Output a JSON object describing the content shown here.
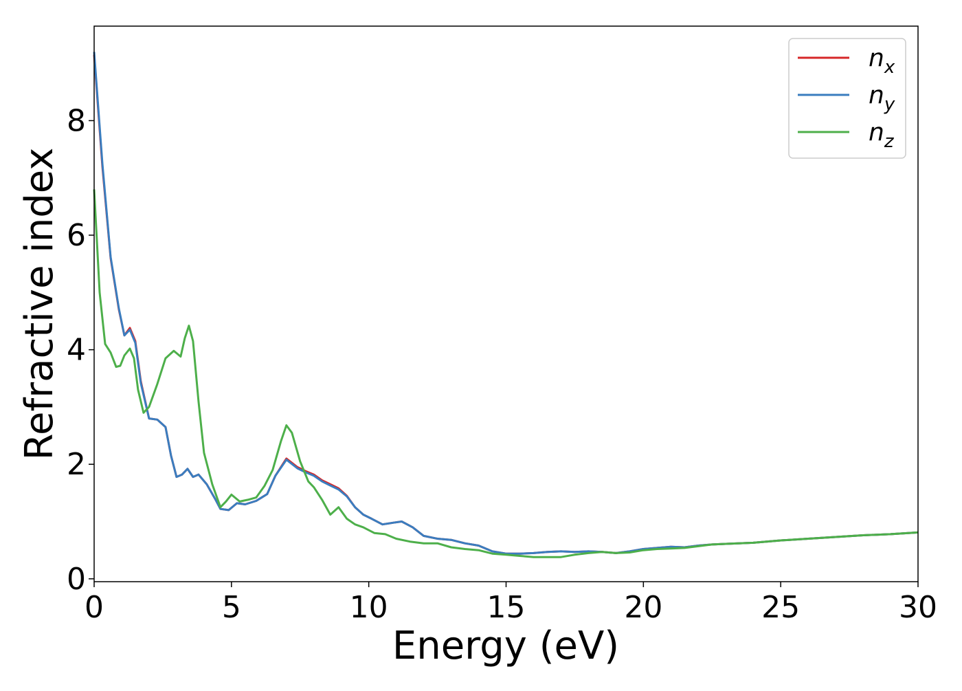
{
  "chart_data": {
    "type": "line",
    "title": "",
    "xlabel": "Energy (eV)",
    "ylabel": "Refractive index",
    "xlim": [
      0,
      30
    ],
    "ylim": [
      -0.05,
      9.65
    ],
    "xticks": [
      0,
      5,
      10,
      15,
      20,
      25,
      30
    ],
    "yticks": [
      0,
      2,
      4,
      6,
      8
    ],
    "grid": false,
    "legend": {
      "placement": "top-right",
      "entries": [
        {
          "base": "n",
          "sub": "x",
          "color": "#d62728"
        },
        {
          "base": "n",
          "sub": "y",
          "color": "#3a7dbf"
        },
        {
          "base": "n",
          "sub": "z",
          "color": "#4daf4a"
        }
      ]
    },
    "series": [
      {
        "name": "nx",
        "color": "#d62728",
        "x": [
          0,
          0.3,
          0.6,
          0.9,
          1.1,
          1.3,
          1.5,
          1.7,
          2.0,
          2.3,
          2.6,
          2.8,
          3.0,
          3.2,
          3.4,
          3.6,
          3.8,
          4.1,
          4.4,
          4.6,
          4.9,
          5.2,
          5.5,
          5.9,
          6.3,
          6.6,
          7.0,
          7.4,
          7.7,
          8.0,
          8.3,
          8.6,
          8.9,
          9.2,
          9.5,
          9.8,
          10.1,
          10.5,
          10.9,
          11.2,
          11.6,
          12.0,
          12.5,
          13.0,
          13.5,
          14.0,
          14.5,
          15.0,
          15.5,
          16.0,
          16.5,
          17.0,
          17.5,
          18.0,
          18.5,
          19.0,
          19.5,
          20.0,
          20.5,
          21.0,
          21.5,
          22.0,
          22.5,
          23.0,
          24.0,
          25.0,
          26.0,
          27.0,
          28.0,
          29.0,
          30.0
        ],
        "y": [
          9.15,
          7.2,
          5.6,
          4.7,
          4.25,
          4.38,
          4.15,
          3.45,
          2.8,
          2.78,
          2.65,
          2.15,
          1.78,
          1.82,
          1.92,
          1.78,
          1.82,
          1.65,
          1.4,
          1.22,
          1.2,
          1.32,
          1.3,
          1.36,
          1.48,
          1.8,
          2.1,
          1.95,
          1.88,
          1.82,
          1.72,
          1.65,
          1.58,
          1.45,
          1.25,
          1.12,
          1.05,
          0.95,
          0.98,
          1.0,
          0.9,
          0.75,
          0.7,
          0.68,
          0.62,
          0.58,
          0.48,
          0.44,
          0.44,
          0.45,
          0.47,
          0.48,
          0.47,
          0.48,
          0.47,
          0.45,
          0.48,
          0.52,
          0.54,
          0.56,
          0.55,
          0.58,
          0.6,
          0.61,
          0.63,
          0.67,
          0.7,
          0.73,
          0.76,
          0.78,
          0.81
        ]
      },
      {
        "name": "ny",
        "color": "#3a7dbf",
        "x": [
          0,
          0.3,
          0.6,
          0.9,
          1.1,
          1.3,
          1.5,
          1.7,
          2.0,
          2.3,
          2.6,
          2.8,
          3.0,
          3.2,
          3.4,
          3.6,
          3.8,
          4.1,
          4.4,
          4.6,
          4.9,
          5.2,
          5.5,
          5.9,
          6.3,
          6.6,
          7.0,
          7.4,
          7.7,
          8.0,
          8.3,
          8.6,
          8.9,
          9.2,
          9.5,
          9.8,
          10.1,
          10.5,
          10.9,
          11.2,
          11.6,
          12.0,
          12.5,
          13.0,
          13.5,
          14.0,
          14.5,
          15.0,
          15.5,
          16.0,
          16.5,
          17.0,
          17.5,
          18.0,
          18.5,
          19.0,
          19.5,
          20.0,
          20.5,
          21.0,
          21.5,
          22.0,
          22.5,
          23.0,
          24.0,
          25.0,
          26.0,
          27.0,
          28.0,
          29.0,
          30.0
        ],
        "y": [
          9.2,
          7.25,
          5.62,
          4.72,
          4.25,
          4.35,
          4.12,
          3.42,
          2.8,
          2.78,
          2.65,
          2.15,
          1.78,
          1.82,
          1.92,
          1.78,
          1.82,
          1.65,
          1.4,
          1.22,
          1.2,
          1.32,
          1.3,
          1.36,
          1.48,
          1.8,
          2.08,
          1.93,
          1.86,
          1.8,
          1.7,
          1.63,
          1.56,
          1.44,
          1.25,
          1.12,
          1.05,
          0.95,
          0.98,
          1.0,
          0.9,
          0.75,
          0.7,
          0.68,
          0.62,
          0.58,
          0.48,
          0.44,
          0.44,
          0.45,
          0.47,
          0.48,
          0.47,
          0.48,
          0.47,
          0.45,
          0.48,
          0.52,
          0.54,
          0.56,
          0.55,
          0.58,
          0.6,
          0.61,
          0.63,
          0.67,
          0.7,
          0.73,
          0.76,
          0.78,
          0.81
        ]
      },
      {
        "name": "nz",
        "color": "#4daf4a",
        "x": [
          0,
          0.2,
          0.4,
          0.6,
          0.8,
          0.95,
          1.1,
          1.3,
          1.45,
          1.6,
          1.8,
          2.0,
          2.3,
          2.6,
          2.9,
          3.15,
          3.3,
          3.45,
          3.6,
          3.8,
          4.0,
          4.3,
          4.6,
          4.8,
          5.0,
          5.3,
          5.6,
          5.9,
          6.2,
          6.5,
          6.8,
          7.0,
          7.2,
          7.5,
          7.8,
          8.0,
          8.3,
          8.6,
          8.9,
          9.2,
          9.5,
          9.8,
          10.2,
          10.6,
          11.0,
          11.5,
          12.0,
          12.5,
          13.0,
          13.5,
          14.0,
          14.5,
          15.0,
          15.5,
          16.0,
          16.5,
          17.0,
          17.5,
          18.0,
          18.5,
          19.0,
          19.5,
          20.0,
          20.5,
          21.0,
          21.5,
          22.0,
          22.5,
          23.0,
          24.0,
          25.0,
          26.0,
          27.0,
          28.0,
          29.0,
          30.0
        ],
        "y": [
          6.8,
          5.0,
          4.1,
          3.95,
          3.7,
          3.72,
          3.9,
          4.02,
          3.85,
          3.3,
          2.9,
          3.0,
          3.4,
          3.85,
          3.98,
          3.88,
          4.2,
          4.42,
          4.15,
          3.1,
          2.2,
          1.65,
          1.25,
          1.35,
          1.47,
          1.35,
          1.38,
          1.42,
          1.62,
          1.9,
          2.4,
          2.68,
          2.55,
          2.05,
          1.7,
          1.6,
          1.38,
          1.12,
          1.25,
          1.05,
          0.95,
          0.9,
          0.8,
          0.78,
          0.7,
          0.65,
          0.62,
          0.62,
          0.55,
          0.52,
          0.5,
          0.44,
          0.42,
          0.4,
          0.38,
          0.38,
          0.38,
          0.42,
          0.45,
          0.47,
          0.45,
          0.46,
          0.5,
          0.52,
          0.53,
          0.54,
          0.57,
          0.6,
          0.61,
          0.63,
          0.67,
          0.7,
          0.73,
          0.76,
          0.78,
          0.81
        ]
      }
    ]
  }
}
